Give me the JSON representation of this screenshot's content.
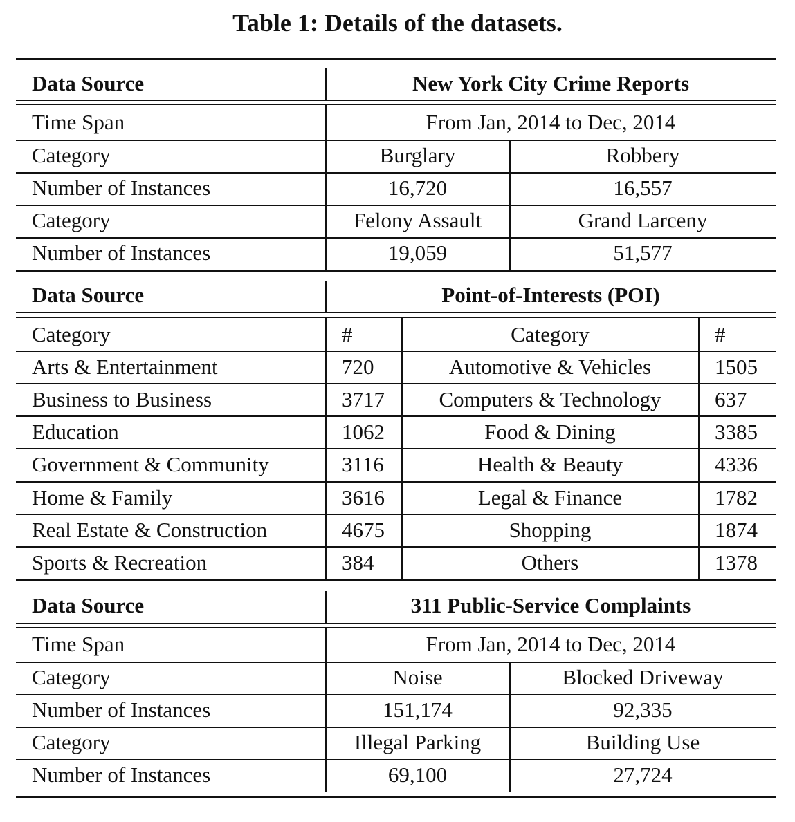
{
  "caption": "Table 1: Details of the datasets.",
  "crime": {
    "header_label": "Data Source",
    "header_value": "New York City Crime Reports",
    "time_span_label": "Time Span",
    "time_span_value": "From Jan, 2014 to Dec, 2014",
    "category_label": "Category",
    "instances_label": "Number of Instances",
    "rows": [
      {
        "cat1": "Burglary",
        "cat2": "Robbery",
        "num1": "16,720",
        "num2": "16,557"
      },
      {
        "cat1": "Felony Assault",
        "cat2": "Grand Larceny",
        "num1": "19,059",
        "num2": "51,577"
      }
    ]
  },
  "poi": {
    "header_label": "Data Source",
    "header_value": "Point-of-Interests (POI)",
    "col_category": "Category",
    "col_count": "#",
    "rows": [
      {
        "left": "Arts & Entertainment",
        "left_n": "720",
        "right": "Automotive & Vehicles",
        "right_n": "1505"
      },
      {
        "left": "Business to Business",
        "left_n": "3717",
        "right": "Computers & Technology",
        "right_n": "637"
      },
      {
        "left": "Education",
        "left_n": "1062",
        "right": "Food & Dining",
        "right_n": "3385"
      },
      {
        "left": "Government & Community",
        "left_n": "3116",
        "right": "Health & Beauty",
        "right_n": "4336"
      },
      {
        "left": "Home & Family",
        "left_n": "3616",
        "right": "Legal & Finance",
        "right_n": "1782"
      },
      {
        "left": "Real Estate & Construction",
        "left_n": "4675",
        "right": "Shopping",
        "right_n": "1874"
      },
      {
        "left": "Sports & Recreation",
        "left_n": "384",
        "right": "Others",
        "right_n": "1378"
      }
    ]
  },
  "complaints": {
    "header_label": "Data Source",
    "header_value": "311 Public-Service Complaints",
    "time_span_label": "Time Span",
    "time_span_value": "From Jan, 2014 to Dec, 2014",
    "category_label": "Category",
    "instances_label": "Number of Instances",
    "rows": [
      {
        "cat1": "Noise",
        "cat2": "Blocked Driveway",
        "num1": "151,174",
        "num2": "92,335"
      },
      {
        "cat1": "Illegal Parking",
        "cat2": "Building Use",
        "num1": "69,100",
        "num2": "27,724"
      }
    ]
  }
}
